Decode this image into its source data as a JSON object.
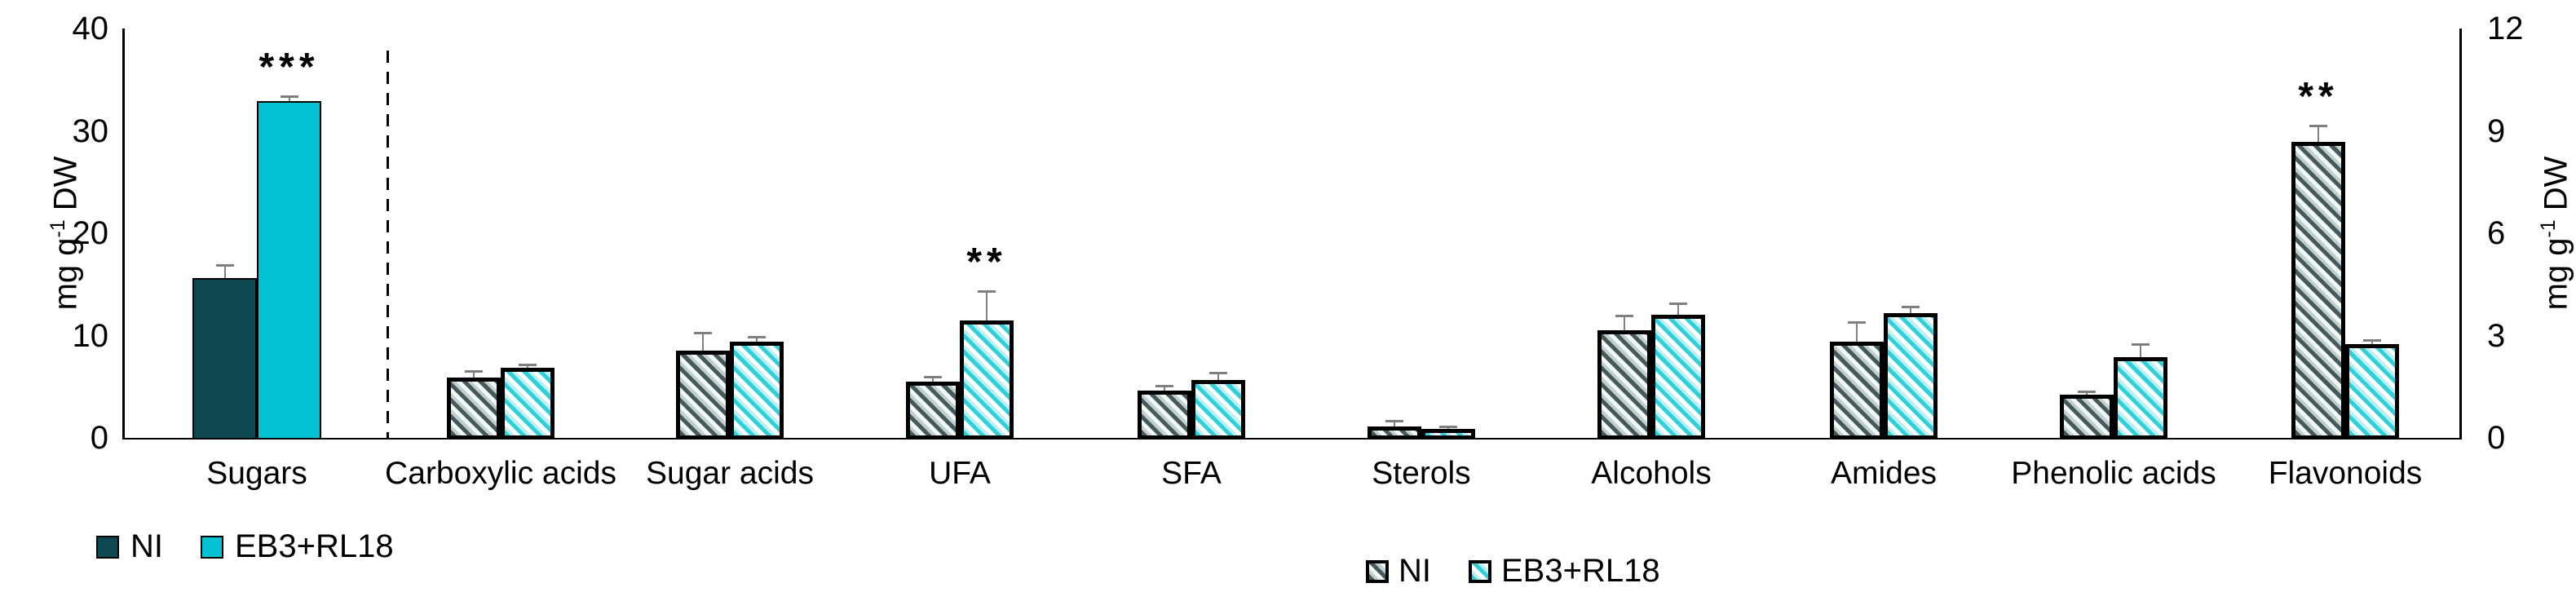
{
  "figure": {
    "background": "#ffffff",
    "axis_title": {
      "pre": "mg g",
      "sup": "-1",
      "post": " DW"
    },
    "colors": {
      "solid_ni": "#0d4850",
      "solid_eb3": "#04c2d1",
      "hatch_ni_stripe": "#46595c",
      "hatch_eb3_stripe": "#2fd0da",
      "error_bar": "#7f7f7f",
      "axis": "#000000"
    },
    "legend_solid": {
      "items": [
        {
          "label": "NI"
        },
        {
          "label": "EB3+RL18"
        }
      ]
    },
    "legend_hatched": {
      "items": [
        {
          "label": "NI"
        },
        {
          "label": "EB3+RL18"
        }
      ]
    }
  },
  "chart_data": {
    "type": "bar",
    "title": "",
    "series_names": [
      "NI",
      "EB3+RL18"
    ],
    "left_axis": {
      "label": "mg g-1 DW",
      "ticks": [
        0,
        10,
        20,
        30,
        40
      ],
      "ylim": [
        0,
        40
      ]
    },
    "right_axis": {
      "label": "mg g-1 DW",
      "ticks": [
        0,
        3,
        6,
        9,
        12
      ],
      "ylim": [
        0,
        12
      ]
    },
    "grid": false,
    "legend_position": "bottom",
    "groups": [
      {
        "category": "Sugars",
        "axis": "left",
        "style": "solid",
        "bars": [
          {
            "series": "NI",
            "value": 15.6,
            "error": 1.2
          },
          {
            "series": "EB3+RL18",
            "value": 32.9,
            "error": 0.4,
            "sig": "***"
          }
        ]
      },
      {
        "category": "Carboxylic acids",
        "axis": "right",
        "style": "hatched",
        "bars": [
          {
            "series": "NI",
            "value": 1.76,
            "error": 0.18
          },
          {
            "series": "EB3+RL18",
            "value": 2.05,
            "error": 0.08
          }
        ]
      },
      {
        "category": "Sugar acids",
        "axis": "right",
        "style": "hatched",
        "bars": [
          {
            "series": "NI",
            "value": 2.56,
            "error": 0.5
          },
          {
            "series": "EB3+RL18",
            "value": 2.81,
            "error": 0.12
          }
        ]
      },
      {
        "category": "UFA",
        "axis": "right",
        "style": "hatched",
        "bars": [
          {
            "series": "NI",
            "value": 1.64,
            "error": 0.12
          },
          {
            "series": "EB3+RL18",
            "value": 3.44,
            "error": 0.85,
            "sig": "**"
          }
        ]
      },
      {
        "category": "SFA",
        "axis": "right",
        "style": "hatched",
        "bars": [
          {
            "series": "NI",
            "value": 1.38,
            "error": 0.12
          },
          {
            "series": "EB3+RL18",
            "value": 1.7,
            "error": 0.18
          }
        ]
      },
      {
        "category": "Sterols",
        "axis": "right",
        "style": "hatched",
        "bars": [
          {
            "series": "NI",
            "value": 0.34,
            "error": 0.14
          },
          {
            "series": "EB3+RL18",
            "value": 0.26,
            "error": 0.06
          }
        ]
      },
      {
        "category": "Alcohols",
        "axis": "right",
        "style": "hatched",
        "bars": [
          {
            "series": "NI",
            "value": 3.16,
            "error": 0.4
          },
          {
            "series": "EB3+RL18",
            "value": 3.61,
            "error": 0.3
          }
        ]
      },
      {
        "category": "Amides",
        "axis": "right",
        "style": "hatched",
        "bars": [
          {
            "series": "NI",
            "value": 2.81,
            "error": 0.55
          },
          {
            "series": "EB3+RL18",
            "value": 3.66,
            "error": 0.17
          }
        ]
      },
      {
        "category": "Phenolic acids",
        "axis": "right",
        "style": "hatched",
        "bars": [
          {
            "series": "NI",
            "value": 1.27,
            "error": 0.08
          },
          {
            "series": "EB3+RL18",
            "value": 2.36,
            "error": 0.37
          }
        ]
      },
      {
        "category": "Flavonoids",
        "axis": "right",
        "style": "hatched",
        "bars": [
          {
            "series": "NI",
            "value": 8.68,
            "error": 0.45,
            "sig": "**"
          },
          {
            "series": "EB3+RL18",
            "value": 2.76,
            "error": 0.08
          }
        ]
      }
    ]
  }
}
